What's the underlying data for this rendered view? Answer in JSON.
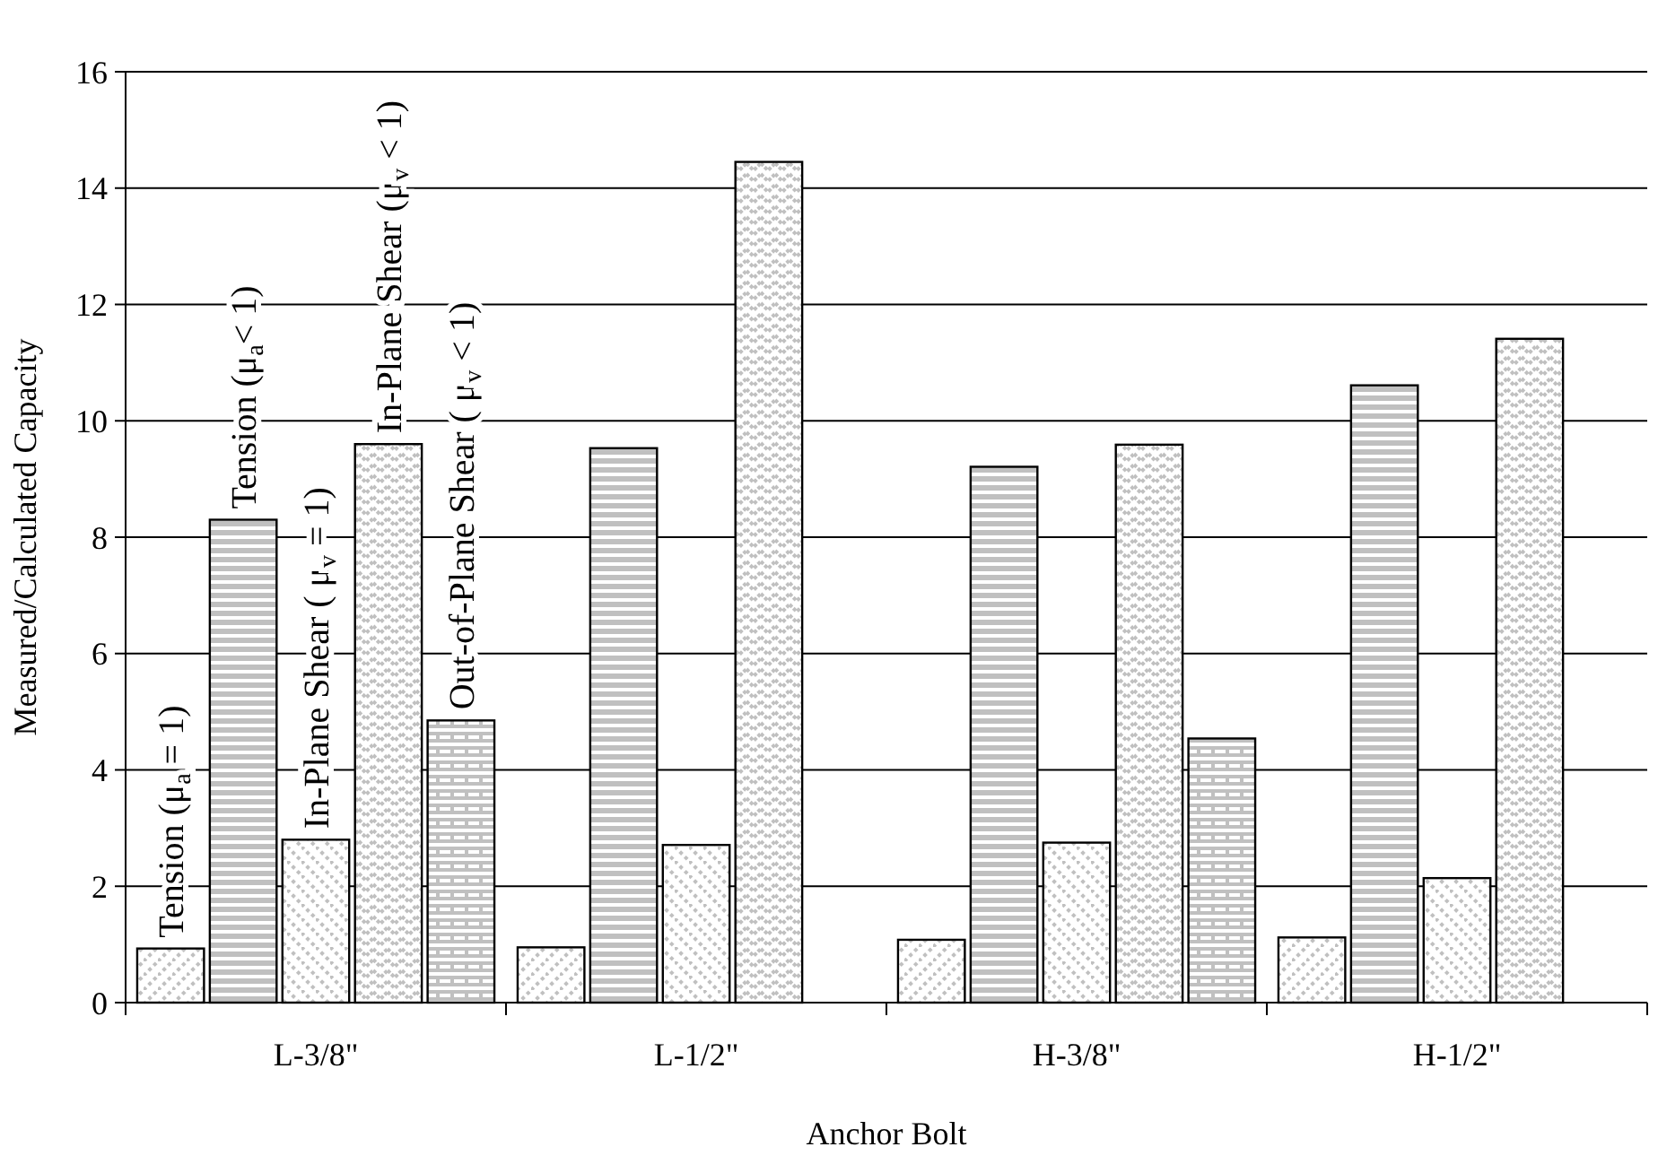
{
  "chart_data": {
    "type": "bar",
    "xlabel": "Anchor Bolt",
    "ylabel": "Measured/Calculated Capacity",
    "categories": [
      "L-3/8\"",
      "L-1/2\"",
      "H-3/8\"",
      "H-1/2\""
    ],
    "series": [
      {
        "name": "Tension (μ$_{a}$ = 1)",
        "color": "#c0c0c0",
        "values": [
          0.93,
          0.95,
          1.08,
          1.12
        ]
      },
      {
        "name": "Tension (μ$_{a}$< 1)",
        "color": "#c0c0c0",
        "values": [
          8.3,
          9.53,
          9.21,
          10.61
        ]
      },
      {
        "name": "In-Plane Shear ( μ$_{v}$ = 1)",
        "color": "#c0c0c0",
        "values": [
          2.8,
          2.71,
          2.75,
          2.14
        ]
      },
      {
        "name": "In-Plane Shear (μ$_{v}$ < 1)",
        "color": "#c0c0c0",
        "values": [
          9.6,
          14.45,
          9.59,
          11.41
        ]
      },
      {
        "name": "Out-of-Plane Shear ( μ$_{v}$ < 1)",
        "color": "#c0c0c0",
        "values": [
          4.85,
          null,
          4.54,
          null
        ]
      }
    ],
    "ylim": [
      0,
      16
    ],
    "yticks": [
      0,
      2,
      4,
      6,
      8,
      10,
      12,
      14,
      16
    ],
    "grid": "y"
  }
}
